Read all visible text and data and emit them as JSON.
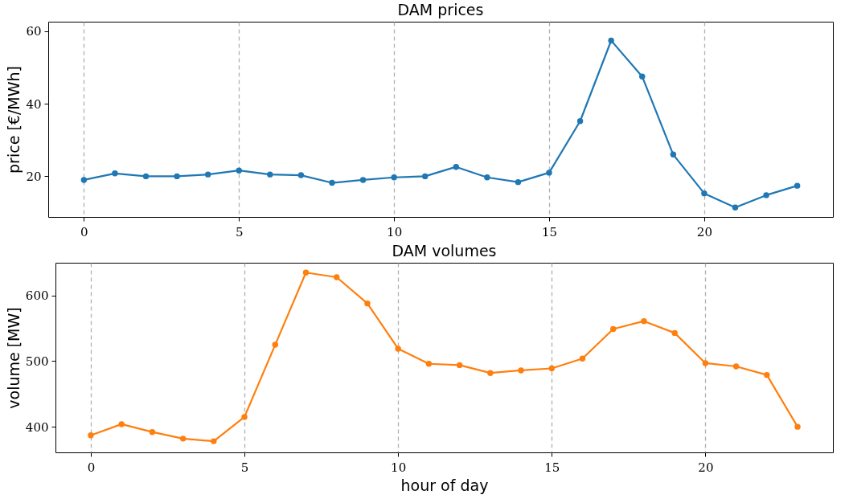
{
  "chart_data": [
    {
      "type": "line",
      "title": "DAM prices",
      "ylabel": "price [€/MWh]",
      "x": [
        0,
        1,
        2,
        3,
        4,
        5,
        6,
        7,
        8,
        9,
        10,
        11,
        12,
        13,
        14,
        15,
        16,
        17,
        18,
        19,
        20,
        21,
        22,
        23
      ],
      "series": [
        {
          "color": "#1f77b4",
          "values": [
            19,
            20.8,
            20,
            20,
            20.5,
            21.6,
            20.5,
            20.3,
            18.2,
            19,
            19.7,
            20,
            22.6,
            19.7,
            18.4,
            21,
            35.2,
            57.4,
            47.5,
            26,
            15.3,
            11.4,
            14.8,
            17.4
          ]
        }
      ],
      "xlim": [
        -1.15,
        24.15
      ],
      "xticks": [
        0,
        5,
        10,
        15,
        20
      ],
      "ylim": [
        8.8,
        62.6
      ],
      "yticks": [
        20,
        40,
        60
      ],
      "grid": "x",
      "marker": "circle",
      "line_style": "solid"
    },
    {
      "type": "line",
      "title": "DAM volumes",
      "xlabel": "hour of day",
      "ylabel": "volume [MW]",
      "x": [
        0,
        1,
        2,
        3,
        4,
        5,
        6,
        7,
        8,
        9,
        10,
        11,
        12,
        13,
        14,
        15,
        16,
        17,
        18,
        19,
        20,
        21,
        22,
        23
      ],
      "series": [
        {
          "color": "#ff7f0e",
          "values": [
            387,
            404,
            392,
            382,
            378,
            415,
            525,
            635,
            628,
            588,
            519,
            496,
            494,
            482,
            486,
            489,
            504,
            549,
            561,
            543,
            497,
            492,
            479,
            400
          ]
        }
      ],
      "xlim": [
        -1.15,
        24.15
      ],
      "xticks": [
        0,
        5,
        10,
        15,
        20
      ],
      "ylim": [
        361,
        650
      ],
      "yticks": [
        400,
        500,
        600
      ],
      "grid": "x",
      "marker": "circle",
      "line_style": "solid"
    }
  ]
}
